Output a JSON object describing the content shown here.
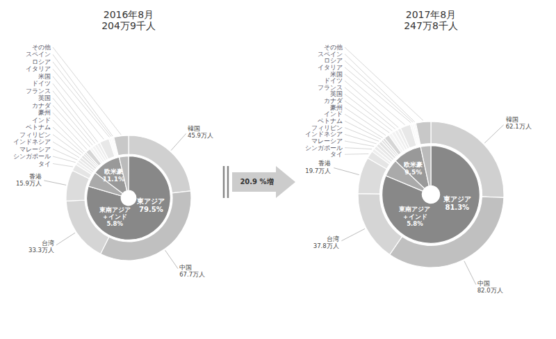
{
  "chart_data": [
    {
      "type": "donut",
      "title": "2016年8月\n204万9千人",
      "annotations": [
        "20.9 %増"
      ],
      "data_labels": true,
      "series": [
        {
          "categories": [
            "東アジア",
            "東南アジア\n＋インド",
            "欧米豪",
            null
          ],
          "values": [
            79.5,
            5.8,
            11.1,
            3.6
          ],
          "value_labels": [
            "79.5%",
            "5.8%",
            "11.1%",
            null
          ],
          "colors": [
            "#888888",
            "#aaaaaa",
            "#999999",
            "#bbbbbb"
          ]
        },
        {
          "categories": [
            "韓国",
            "中国",
            "台湾",
            "香港",
            "タイ",
            "シンガポール",
            "マレーシア",
            "インドネシア",
            "フィリピン",
            "ベトナム",
            "インド",
            "豪州",
            "カナダ",
            "英国",
            "フランス",
            "ドイツ",
            "米国",
            "イタリア",
            "ロシア",
            "スペイン",
            "その他"
          ],
          "values": [
            45.9,
            67.7,
            33.3,
            15.9,
            3.5,
            1.5,
            1.5,
            1.5,
            1.5,
            1.0,
            1.0,
            2.5,
            1.5,
            1.5,
            1.5,
            1.5,
            5.0,
            1.0,
            0.8,
            0.8,
            7.5
          ],
          "value_labels": [
            "45.9万人",
            "67.7万人",
            "33.3万人",
            "15.9万人",
            null,
            null,
            null,
            null,
            null,
            null,
            null,
            null,
            null,
            null,
            null,
            null,
            null,
            null,
            null,
            null,
            null
          ],
          "colors": [
            "#d0d0d0",
            "#c0c0c0",
            "#d5d5d5",
            "#dcdcdc",
            "#e5e5e5",
            "#eeeeee",
            "#eaeaea",
            "#e6e6e6",
            "#e2e2e2",
            "#dedede",
            "#dadada",
            "#d6d6d6",
            "#f5f5f5",
            "#f2f2f2",
            "#efefef",
            "#ececec",
            "#e8e8e8",
            "#f8f8f8",
            "#f6f6f6",
            "#f4f4f4",
            "#c8c8c8"
          ]
        }
      ]
    },
    {
      "type": "donut",
      "title": "2017年8月\n247万8千人",
      "data_labels": true,
      "series": [
        {
          "categories": [
            "東アジア",
            "東南アジア\n＋インド",
            "欧米豪",
            null
          ],
          "values": [
            81.3,
            5.8,
            9.5,
            3.4
          ],
          "value_labels": [
            "81.3%",
            "5.8%",
            "9.5%",
            null
          ],
          "colors": [
            "#888888",
            "#aaaaaa",
            "#999999",
            "#bbbbbb"
          ]
        },
        {
          "categories": [
            "韓国",
            "中国",
            "台湾",
            "香港",
            "タイ",
            "シンガポール",
            "マレーシア",
            "インドネシア",
            "フィリピン",
            "ベトナム",
            "インド",
            "豪州",
            "カナダ",
            "英国",
            "フランス",
            "ドイツ",
            "米国",
            "イタリア",
            "ロシア",
            "スペイン",
            "その他"
          ],
          "values": [
            62.1,
            82.0,
            37.8,
            19.7,
            4.2,
            1.8,
            1.8,
            1.8,
            1.8,
            1.2,
            1.2,
            2.8,
            1.8,
            1.8,
            1.8,
            1.8,
            5.5,
            1.2,
            0.9,
            0.9,
            8.0
          ],
          "value_labels": [
            "62.1万人",
            "82.0万人",
            "37.8万人",
            "19.7万人",
            null,
            null,
            null,
            null,
            null,
            null,
            null,
            null,
            null,
            null,
            null,
            null,
            null,
            null,
            null,
            null,
            null
          ],
          "colors": [
            "#d0d0d0",
            "#c0c0c0",
            "#d5d5d5",
            "#dcdcdc",
            "#e5e5e5",
            "#eeeeee",
            "#eaeaea",
            "#e6e6e6",
            "#e2e2e2",
            "#dedede",
            "#dadada",
            "#d6d6d6",
            "#f5f5f5",
            "#f2f2f2",
            "#efefef",
            "#ececec",
            "#e8e8e8",
            "#f8f8f8",
            "#f6f6f6",
            "#f4f4f4",
            "#c8c8c8"
          ]
        }
      ]
    }
  ]
}
